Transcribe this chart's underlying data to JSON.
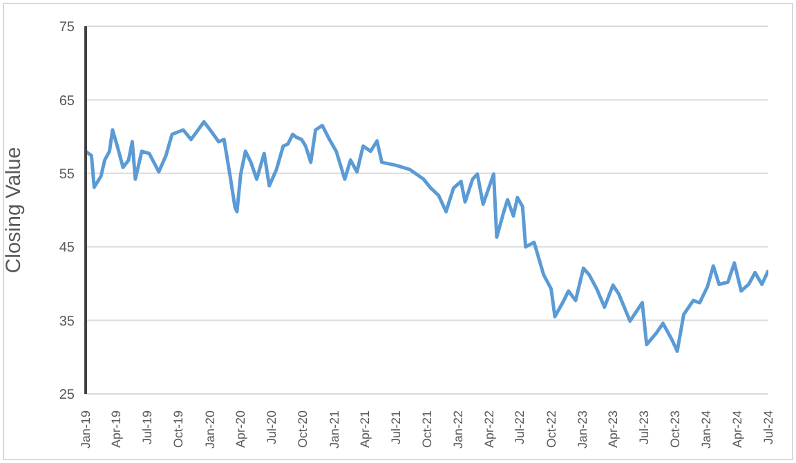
{
  "chart_data": {
    "type": "line",
    "ylabel": "Closing Value",
    "ylim": [
      25,
      75
    ],
    "yticks": [
      25,
      35,
      45,
      55,
      65,
      75
    ],
    "grid": "y",
    "legend": false,
    "marker": "none",
    "line_style": "solid",
    "xlim": [
      "2019-01-01",
      "2024-07-01"
    ],
    "xticks": [
      {
        "value": "2019-01",
        "label": "Jan-19"
      },
      {
        "value": "2019-04",
        "label": "Apr-19"
      },
      {
        "value": "2019-07",
        "label": "Jul-19"
      },
      {
        "value": "2019-10",
        "label": "Oct-19"
      },
      {
        "value": "2020-01",
        "label": "Jan-20"
      },
      {
        "value": "2020-04",
        "label": "Apr-20"
      },
      {
        "value": "2020-07",
        "label": "Jul-20"
      },
      {
        "value": "2020-10",
        "label": "Oct-20"
      },
      {
        "value": "2021-01",
        "label": "Jan-21"
      },
      {
        "value": "2021-04",
        "label": "Apr-21"
      },
      {
        "value": "2021-07",
        "label": "Jul-21"
      },
      {
        "value": "2021-10",
        "label": "Oct-21"
      },
      {
        "value": "2022-01",
        "label": "Jan-22"
      },
      {
        "value": "2022-04",
        "label": "Apr-22"
      },
      {
        "value": "2022-07",
        "label": "Jul-22"
      },
      {
        "value": "2022-10",
        "label": "Oct-22"
      },
      {
        "value": "2023-01",
        "label": "Jan-23"
      },
      {
        "value": "2023-04",
        "label": "Apr-23"
      },
      {
        "value": "2023-07",
        "label": "Jul-23"
      },
      {
        "value": "2023-10",
        "label": "Oct-23"
      },
      {
        "value": "2024-01",
        "label": "Jan-24"
      },
      {
        "value": "2024-04",
        "label": "Apr-24"
      },
      {
        "value": "2024-07",
        "label": "Jul-24"
      }
    ],
    "x": [
      "2019-01-01",
      "2019-01-18",
      "2019-01-26",
      "2019-02-15",
      "2019-02-26",
      "2019-03-12",
      "2019-03-21",
      "2019-04-04",
      "2019-04-21",
      "2019-05-07",
      "2019-05-18",
      "2019-05-27",
      "2019-06-15",
      "2019-07-07",
      "2019-08-04",
      "2019-08-25",
      "2019-09-12",
      "2019-10-15",
      "2019-11-07",
      "2019-12-15",
      "2020-01-07",
      "2020-01-27",
      "2020-02-12",
      "2020-03-01",
      "2020-03-15",
      "2020-03-21",
      "2020-04-01",
      "2020-04-15",
      "2020-05-01",
      "2020-05-18",
      "2020-06-09",
      "2020-06-24",
      "2020-07-15",
      "2020-08-04",
      "2020-08-18",
      "2020-09-01",
      "2020-09-12",
      "2020-09-27",
      "2020-10-09",
      "2020-10-24",
      "2020-11-07",
      "2020-11-27",
      "2020-12-18",
      "2021-01-07",
      "2021-02-01",
      "2021-02-18",
      "2021-03-09",
      "2021-03-27",
      "2021-04-18",
      "2021-05-07",
      "2021-05-21",
      "2021-07-01",
      "2021-08-12",
      "2021-09-21",
      "2021-10-12",
      "2021-11-04",
      "2021-11-26",
      "2021-12-18",
      "2022-01-09",
      "2022-01-21",
      "2022-02-12",
      "2022-02-26",
      "2022-03-15",
      "2022-04-15",
      "2022-04-24",
      "2022-05-15",
      "2022-05-26",
      "2022-06-12",
      "2022-06-24",
      "2022-07-09",
      "2022-07-18",
      "2022-08-12",
      "2022-09-09",
      "2022-10-01",
      "2022-10-12",
      "2022-11-04",
      "2022-11-21",
      "2022-12-12",
      "2023-01-04",
      "2023-01-21",
      "2023-02-12",
      "2023-03-07",
      "2023-04-01",
      "2023-04-18",
      "2023-05-21",
      "2023-06-26",
      "2023-07-09",
      "2023-08-07",
      "2023-08-26",
      "2023-09-21",
      "2023-10-07",
      "2023-10-26",
      "2023-11-23",
      "2023-12-12",
      "2024-01-04",
      "2024-01-21",
      "2024-02-07",
      "2024-03-04",
      "2024-03-23",
      "2024-04-12",
      "2024-05-04",
      "2024-05-23",
      "2024-06-12",
      "2024-07-01"
    ],
    "series": [
      {
        "color": "#5b9bd5",
        "values": [
          58.0,
          57.4,
          53.1,
          54.6,
          56.8,
          58.0,
          60.9,
          58.7,
          55.8,
          56.8,
          59.3,
          54.2,
          58.0,
          57.7,
          55.2,
          57.4,
          60.3,
          60.9,
          59.6,
          62.0,
          60.6,
          59.3,
          59.6,
          54.6,
          50.4,
          49.8,
          54.9,
          58.0,
          56.5,
          54.2,
          57.7,
          53.3,
          55.5,
          58.7,
          59.0,
          60.3,
          59.9,
          59.6,
          58.7,
          56.5,
          60.9,
          61.5,
          59.6,
          58.0,
          54.2,
          56.8,
          55.2,
          58.7,
          58.0,
          59.4,
          56.5,
          56.1,
          55.5,
          54.2,
          53.0,
          52.0,
          49.8,
          53.0,
          53.9,
          51.1,
          54.2,
          54.9,
          50.8,
          54.9,
          46.3,
          49.8,
          51.4,
          49.2,
          51.7,
          50.5,
          45.0,
          45.6,
          41.2,
          39.3,
          35.5,
          37.4,
          39.0,
          37.7,
          42.1,
          41.2,
          39.3,
          36.8,
          39.8,
          38.6,
          34.9,
          37.4,
          31.7,
          33.3,
          34.6,
          32.4,
          30.8,
          35.8,
          37.7,
          37.4,
          39.6,
          42.4,
          39.9,
          40.2,
          42.8,
          39.0,
          39.9,
          41.5,
          39.9,
          41.8
        ]
      }
    ]
  }
}
